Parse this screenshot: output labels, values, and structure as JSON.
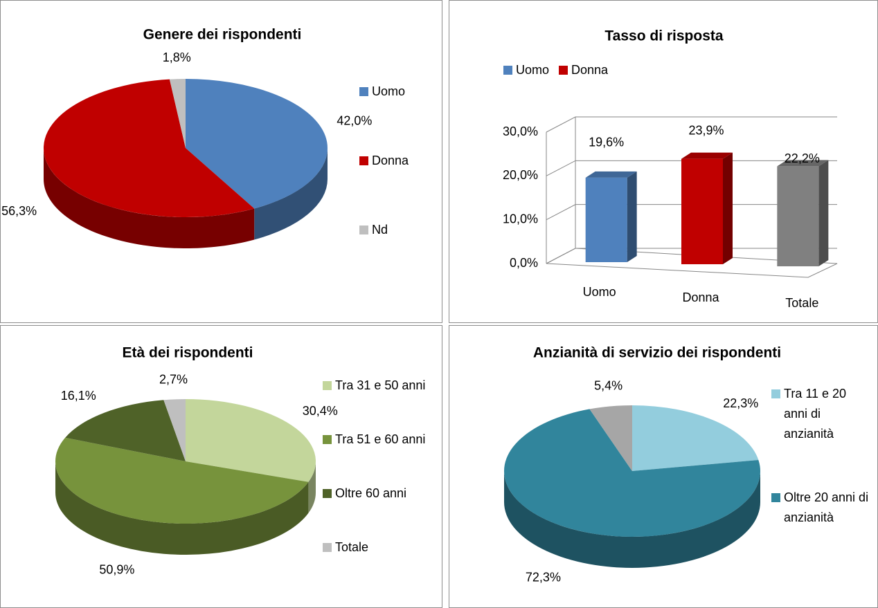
{
  "chart_data": [
    {
      "type": "pie",
      "title": "Genere dei rispondenti",
      "categories": [
        "Uomo",
        "Donna",
        "Nd"
      ],
      "values": [
        42.0,
        56.3,
        1.8
      ],
      "value_labels": [
        "42,0%",
        "56,3%",
        "1,8%"
      ],
      "colors": [
        "#4f81bd",
        "#c00000",
        "#bfbfbf"
      ],
      "legend": "right"
    },
    {
      "type": "bar",
      "title": "Tasso di risposta",
      "categories": [
        "Uomo",
        "Donna",
        "Totale"
      ],
      "values": [
        19.6,
        23.9,
        22.2
      ],
      "value_labels": [
        "19,6%",
        "23,9%",
        "22,2%"
      ],
      "colors": [
        "#4f81bd",
        "#c00000",
        "#808080"
      ],
      "legend_entries": [
        "Uomo",
        "Donna"
      ],
      "legend": "top",
      "ylim": [
        0,
        30
      ],
      "yticks": [
        {
          "value": 0,
          "label": "0,0%"
        },
        {
          "value": 10,
          "label": "10,0%"
        },
        {
          "value": 20,
          "label": "20,0%"
        },
        {
          "value": 30,
          "label": "30,0%"
        }
      ],
      "grid": true
    },
    {
      "type": "pie",
      "title": "Età dei rispondenti",
      "categories": [
        "Tra 31 e 50 anni",
        "Tra 51 e 60 anni",
        "Oltre 60 anni",
        "Totale"
      ],
      "values": [
        30.4,
        50.9,
        16.1,
        2.7
      ],
      "value_labels": [
        "30,4%",
        "50,9%",
        "16,1%",
        "2,7%"
      ],
      "colors": [
        "#c3d69b",
        "#77933c",
        "#4f6228",
        "#bfbfbf"
      ],
      "legend": "right"
    },
    {
      "type": "pie",
      "title": "Anzianità di servizio dei rispondenti",
      "categories": [
        "Tra 11 e 20 anni di anzianità",
        "Oltre 20 anni di anzianità",
        null
      ],
      "values": [
        22.3,
        72.3,
        5.4
      ],
      "value_labels": [
        "22,3%",
        "72,3%",
        "5,4%"
      ],
      "colors": [
        "#93cddd",
        "#31859c",
        "#a6a6a6"
      ],
      "legend": "right"
    }
  ]
}
